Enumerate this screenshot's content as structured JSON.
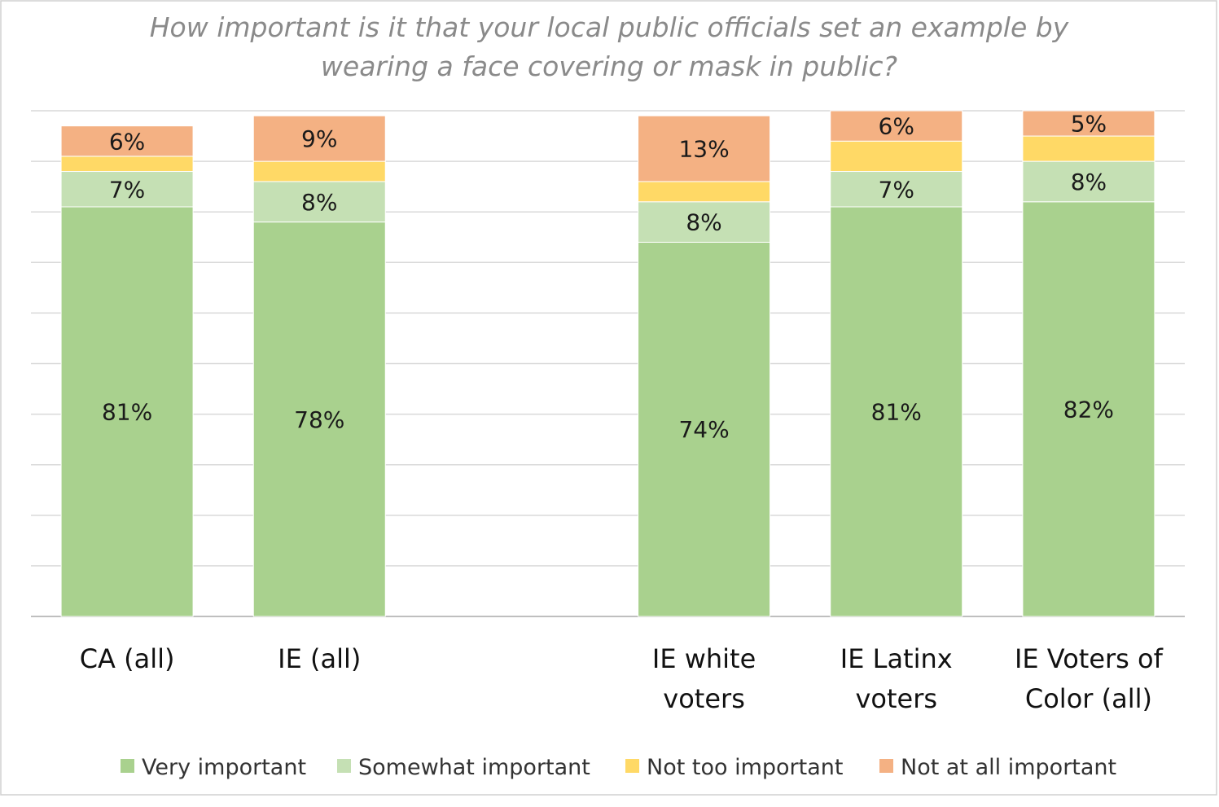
{
  "chart_data": {
    "type": "bar",
    "stacked": true,
    "title_lines": [
      "How important is it that your local public officials set an example by",
      "wearing a face covering or mask in public?"
    ],
    "categories": [
      [
        "CA (all)"
      ],
      [
        "IE (all)"
      ],
      [
        ""
      ],
      [
        "IE white",
        "voters"
      ],
      [
        "IE Latinx",
        "voters"
      ],
      [
        "IE Voters of",
        "Color (all)"
      ]
    ],
    "series": [
      {
        "name": "Very important",
        "color": "#a9d18e",
        "values": [
          81,
          78,
          null,
          74,
          81,
          82
        ],
        "labels": [
          "81%",
          "78%",
          "",
          "74%",
          "81%",
          "82%"
        ]
      },
      {
        "name": "Somewhat important",
        "color": "#c5e0b4",
        "values": [
          7,
          8,
          null,
          8,
          7,
          8
        ],
        "labels": [
          "7%",
          "8%",
          "",
          "8%",
          "7%",
          "8%"
        ]
      },
      {
        "name": "Not too important",
        "color": "#ffd966",
        "values": [
          3,
          4,
          null,
          4,
          6,
          5
        ],
        "labels": [
          "",
          "",
          "",
          "",
          "",
          ""
        ]
      },
      {
        "name": "Not at all important",
        "color": "#f4b183",
        "values": [
          6,
          9,
          null,
          13,
          6,
          5
        ],
        "labels": [
          "6%",
          "9%",
          "",
          "13%",
          "6%",
          "5%"
        ]
      }
    ],
    "ylim": [
      0,
      100
    ],
    "grid": true,
    "legend_position": "bottom"
  }
}
